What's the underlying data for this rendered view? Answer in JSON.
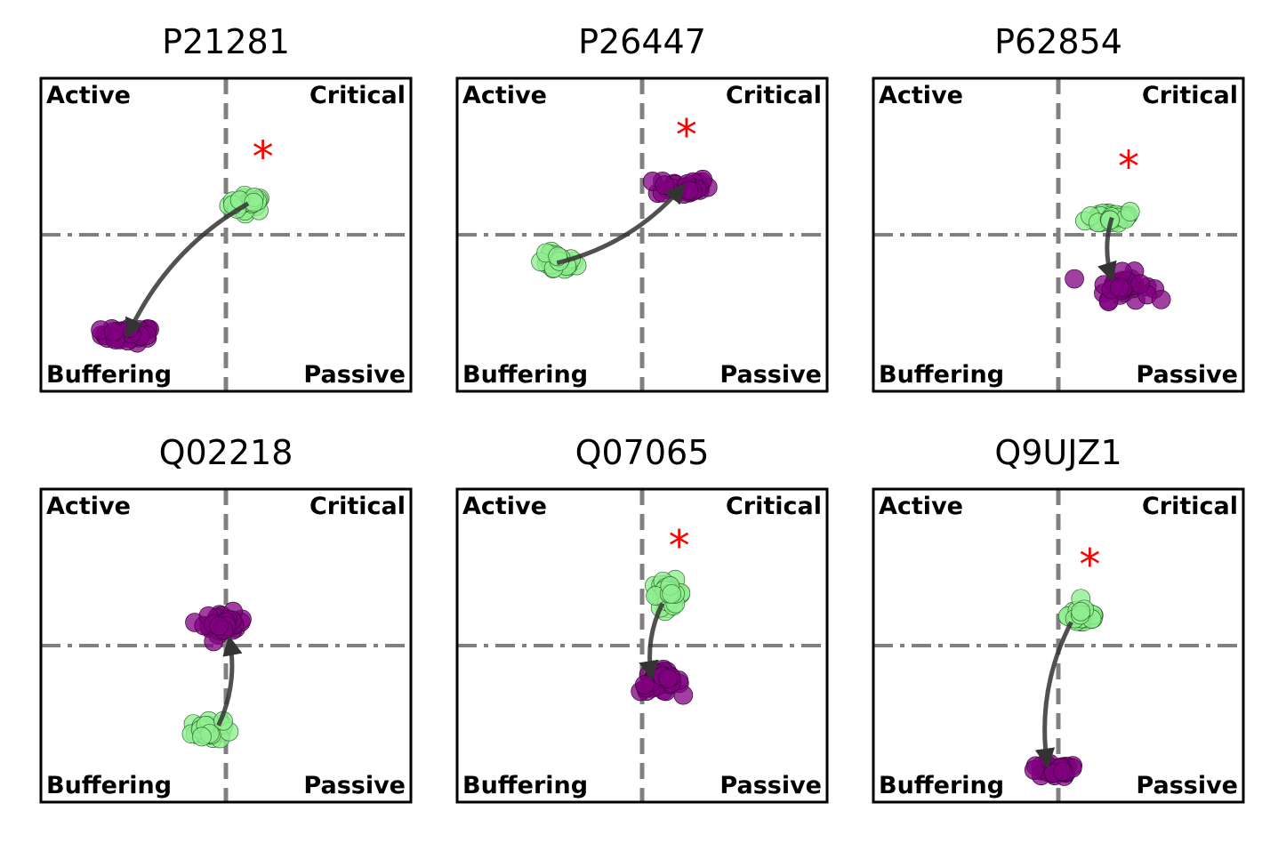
{
  "colors": {
    "before": "#90EE90",
    "after": "#800080",
    "marker": "#FF0000",
    "divider": "#808080",
    "arrow": "#333333"
  },
  "quadrant_labels": {
    "top_left": "Active",
    "top_right": "Critical",
    "bottom_left": "Buffering",
    "bottom_right": "Passive"
  },
  "marker_symbol": "*",
  "chart_data": [
    {
      "type": "scatter",
      "title": "P21281",
      "xlim": [
        -1,
        1
      ],
      "ylim": [
        -1,
        1
      ],
      "grid": false,
      "series": [
        {
          "color": "#90EE90",
          "center": [
            0.12,
            0.2
          ],
          "spread": [
            0.12,
            0.06
          ]
        },
        {
          "color": "#800080",
          "center": [
            -0.53,
            -0.64
          ],
          "spread": [
            0.17,
            0.06
          ]
        }
      ],
      "arrow": {
        "from": [
          0.12,
          0.2
        ],
        "to": [
          -0.53,
          -0.64
        ]
      },
      "star": [
        0.2,
        0.55
      ]
    },
    {
      "type": "scatter",
      "title": "P26447",
      "xlim": [
        -1,
        1
      ],
      "ylim": [
        -1,
        1
      ],
      "grid": false,
      "series": [
        {
          "color": "#90EE90",
          "center": [
            -0.46,
            -0.18
          ],
          "spread": [
            0.12,
            0.07
          ]
        },
        {
          "color": "#800080",
          "center": [
            0.22,
            0.31
          ],
          "spread": [
            0.17,
            0.07
          ]
        }
      ],
      "arrow": {
        "from": [
          -0.46,
          -0.18
        ],
        "to": [
          0.22,
          0.31
        ]
      },
      "star": [
        0.24,
        0.69
      ]
    },
    {
      "type": "scatter",
      "title": "P62854",
      "xlim": [
        -1,
        1
      ],
      "ylim": [
        -1,
        1
      ],
      "grid": false,
      "series": [
        {
          "color": "#90EE90",
          "center": [
            0.29,
            0.11
          ],
          "spread": [
            0.16,
            0.06
          ]
        },
        {
          "color": "#800080",
          "center": [
            0.35,
            -0.33
          ],
          "spread": [
            0.18,
            0.1
          ]
        }
      ],
      "arrow": {
        "from": [
          0.29,
          0.11
        ],
        "to": [
          0.29,
          -0.28
        ]
      },
      "star": [
        0.38,
        0.49
      ]
    },
    {
      "type": "scatter",
      "title": "Q02218",
      "xlim": [
        -1,
        1
      ],
      "ylim": [
        -1,
        1
      ],
      "grid": false,
      "series": [
        {
          "color": "#90EE90",
          "center": [
            -0.1,
            -0.54
          ],
          "spread": [
            0.1,
            0.08
          ]
        },
        {
          "color": "#800080",
          "center": [
            -0.01,
            0.14
          ],
          "spread": [
            0.13,
            0.08
          ]
        }
      ],
      "arrow": {
        "from": [
          -0.04,
          -0.51
        ],
        "to": [
          0.02,
          0.04
        ]
      },
      "star": null
    },
    {
      "type": "scatter",
      "title": "Q07065",
      "xlim": [
        -1,
        1
      ],
      "ylim": [
        -1,
        1
      ],
      "grid": false,
      "series": [
        {
          "color": "#90EE90",
          "center": [
            0.14,
            0.33
          ],
          "spread": [
            0.1,
            0.1
          ]
        },
        {
          "color": "#800080",
          "center": [
            0.1,
            -0.23
          ],
          "spread": [
            0.13,
            0.08
          ]
        }
      ],
      "arrow": {
        "from": [
          0.11,
          0.27
        ],
        "to": [
          0.05,
          -0.2
        ]
      },
      "star": [
        0.2,
        0.69
      ]
    },
    {
      "type": "scatter",
      "title": "Q9UJZ1",
      "xlim": [
        -1,
        1
      ],
      "ylim": [
        -1,
        1
      ],
      "grid": false,
      "series": [
        {
          "color": "#90EE90",
          "center": [
            0.14,
            0.19
          ],
          "spread": [
            0.1,
            0.08
          ]
        },
        {
          "color": "#800080",
          "center": [
            -0.03,
            -0.8
          ],
          "spread": [
            0.16,
            0.05
          ]
        }
      ],
      "arrow": {
        "from": [
          0.07,
          0.15
        ],
        "to": [
          -0.06,
          -0.76
        ]
      },
      "star": [
        0.17,
        0.57
      ]
    }
  ]
}
